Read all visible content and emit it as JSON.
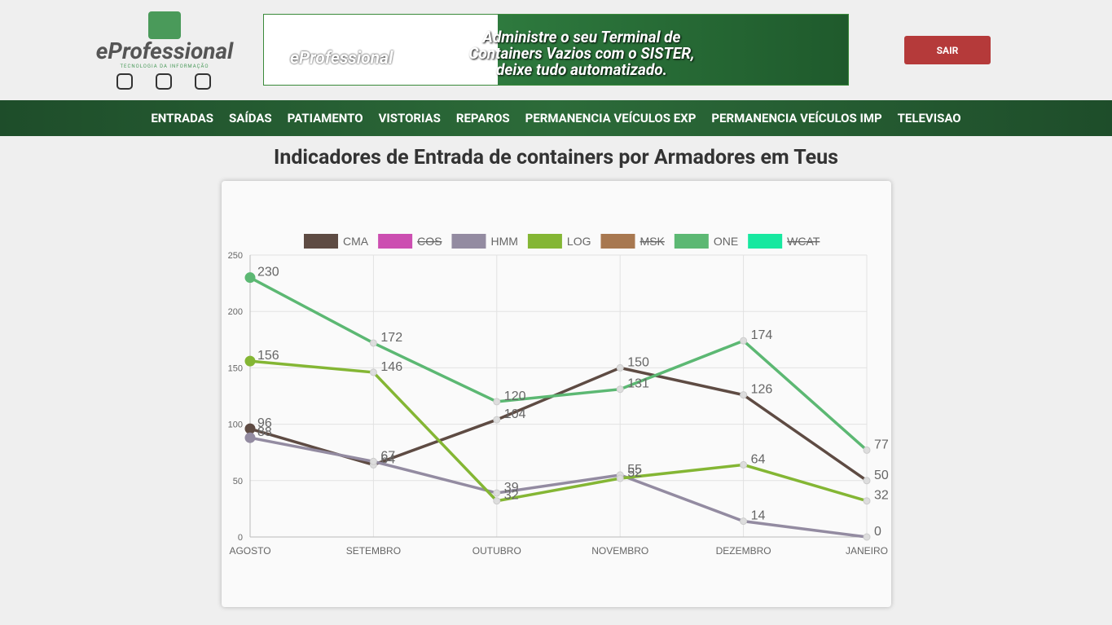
{
  "header": {
    "logo": "eProfessional",
    "logo_tagline": "TECNOLOGIA DA INFORMAÇÃO",
    "banner": {
      "logo": "eProfessional",
      "lines": [
        "Administre o seu Terminal de",
        "Containers Vazios com o SISTER,",
        "deixe tudo automatizado."
      ]
    },
    "logout": "SAIR"
  },
  "nav": [
    "ENTRADAS",
    "SAÍDAS",
    "PATIAMENTO",
    "VISTORIAS",
    "REPAROS",
    "PERMANENCIA VEÍCULOS EXP",
    "PERMANENCIA VEÍCULOS IMP",
    "TELEVISAO"
  ],
  "page_title": "Indicadores de Entrada de containers por Armadores em Teus",
  "chart_data": {
    "type": "line",
    "categories": [
      "AGOSTO",
      "SETEMBRO",
      "OUTUBRO",
      "NOVEMBRO",
      "DEZEMBRO",
      "JANEIRO"
    ],
    "series": [
      {
        "name": "CMA",
        "color": "#5e4b43",
        "values": [
          96,
          64,
          104,
          150,
          126,
          50
        ]
      },
      {
        "name": "COS",
        "color": "#cc4eb1",
        "hidden": true
      },
      {
        "name": "HMM",
        "color": "#938ba1",
        "values": [
          88,
          67,
          39,
          55,
          14,
          0
        ]
      },
      {
        "name": "LOG",
        "color": "#84b634",
        "values": [
          156,
          146,
          32,
          52,
          64,
          32
        ]
      },
      {
        "name": "MSK",
        "color": "#a87850",
        "hidden": true
      },
      {
        "name": "ONE",
        "color": "#5cb873",
        "values": [
          230,
          172,
          120,
          131,
          174,
          77
        ]
      },
      {
        "name": "WCAT",
        "color": "#17e8a0",
        "hidden": true
      }
    ],
    "ylim": [
      0,
      250
    ],
    "yticks": [
      0,
      50,
      100,
      150,
      200,
      250
    ],
    "grid": true,
    "legend": "top"
  }
}
